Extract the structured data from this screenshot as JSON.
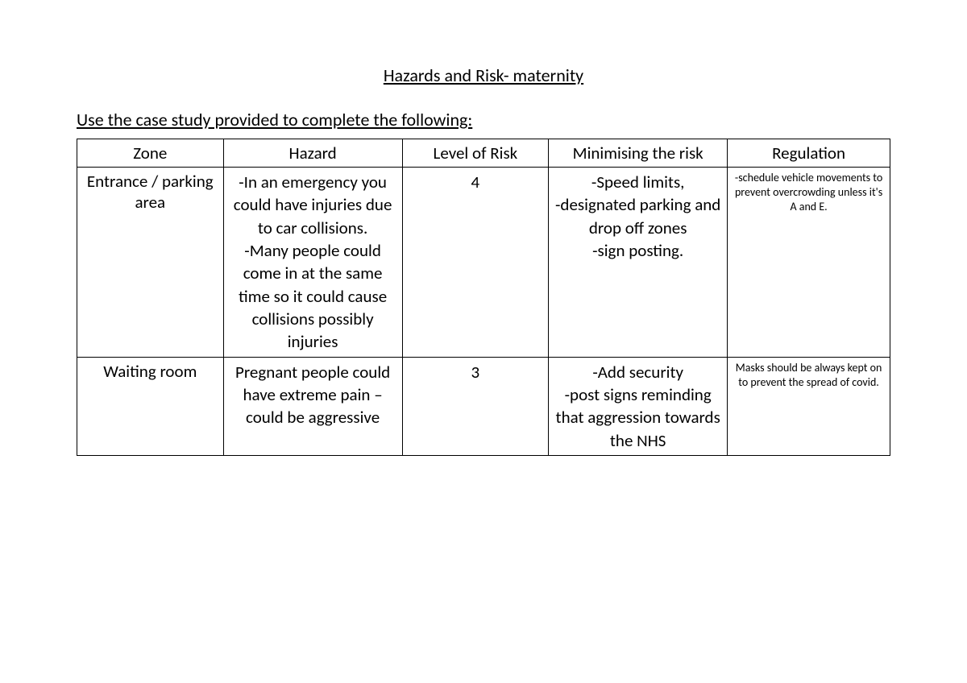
{
  "title": "Hazards and Risk- maternity",
  "instruction": "Use the case study provided to complete the following:",
  "table": {
    "headers": {
      "zone": "Zone",
      "hazard": "Hazard",
      "level": "Level of Risk",
      "minimise": "Minimising the risk",
      "regulation": "Regulation"
    },
    "rows": [
      {
        "zone": "Entrance / parking area",
        "hazard": "-In an emergency you could have injuries due to car collisions.\n-Many people could come in at the same time so it could cause collisions possibly injuries",
        "level": "4",
        "minimise": "-Speed limits,\n-designated parking and drop off zones\n-sign posting.",
        "regulation": "-schedule vehicle movements to prevent overcrowding unless it's A and E."
      },
      {
        "zone": "Waiting room",
        "hazard": "Pregnant people could have extreme pain – could be aggressive",
        "level": "3",
        "minimise": "-Add security\n-post signs reminding that aggression towards the NHS",
        "regulation": "Masks should be always kept on to prevent the spread of covid."
      }
    ]
  },
  "style": {
    "page_bg": "#ffffff",
    "text_color": "#000000",
    "border_color": "#000000",
    "title_fontsize": 22,
    "body_fontsize": 21,
    "small_fontsize": 14,
    "font_family": "Calibri"
  }
}
